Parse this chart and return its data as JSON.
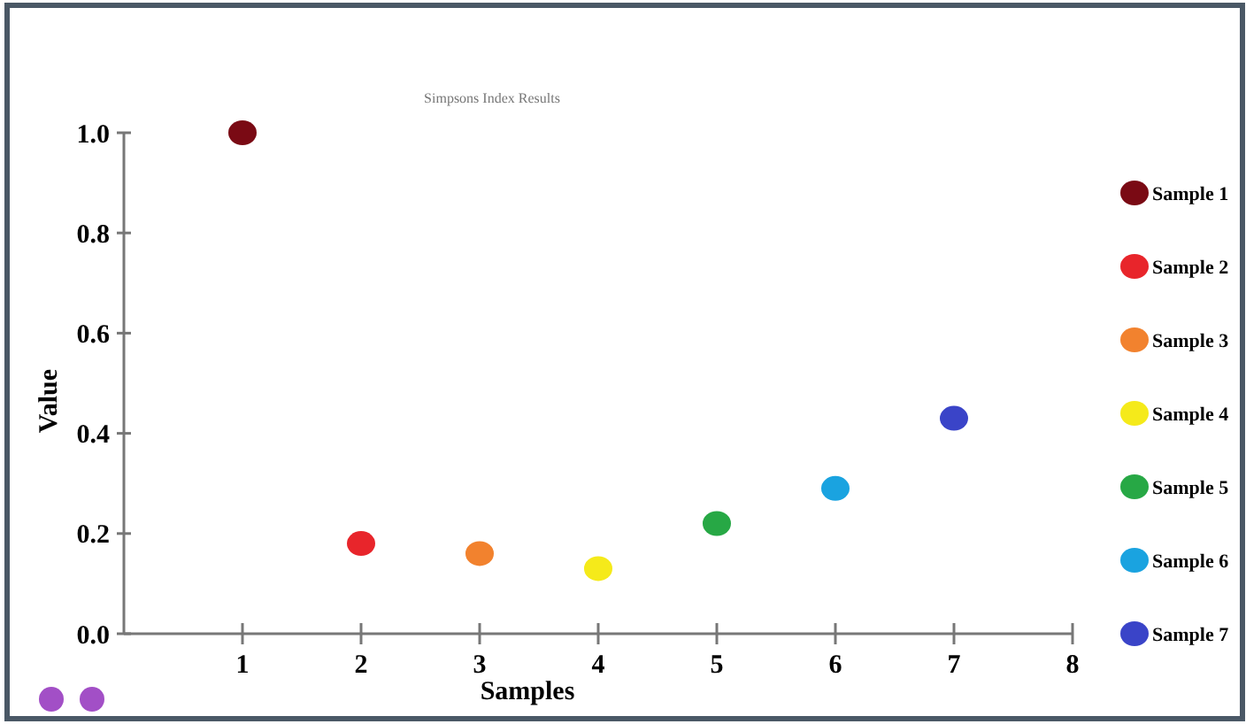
{
  "chart_data": {
    "type": "scatter",
    "title": "Simpsons Index Results",
    "xlabel": "Samples",
    "ylabel": "Value",
    "xlim": [
      0,
      8
    ],
    "xticks": [
      1,
      2,
      3,
      4,
      5,
      6,
      7,
      8
    ],
    "ylim": [
      0,
      1
    ],
    "yticks": [
      {
        "value": 0,
        "label": "0.0"
      },
      {
        "value": 0.2,
        "label": "0.2"
      },
      {
        "value": 0.4,
        "label": "0.4"
      },
      {
        "value": 0.6,
        "label": "0.6"
      },
      {
        "value": 0.8,
        "label": "0.8"
      },
      {
        "value": 1,
        "label": "1.0"
      }
    ],
    "grid": false,
    "legend": "right",
    "marker": "circle",
    "series": [
      {
        "name": "Sample 1",
        "color": "#7a0a14",
        "x": [
          1
        ],
        "values": [
          1.0
        ]
      },
      {
        "name": "Sample 2",
        "color": "#e8252b",
        "x": [
          2
        ],
        "values": [
          0.18
        ]
      },
      {
        "name": "Sample 3",
        "color": "#f2822e",
        "x": [
          3
        ],
        "values": [
          0.16
        ]
      },
      {
        "name": "Sample 4",
        "color": "#f5ea1a",
        "x": [
          4
        ],
        "values": [
          0.13
        ]
      },
      {
        "name": "Sample 5",
        "color": "#27a845",
        "x": [
          5
        ],
        "values": [
          0.22
        ]
      },
      {
        "name": "Sample 6",
        "color": "#1aa3e0",
        "x": [
          6
        ],
        "values": [
          0.29
        ]
      },
      {
        "name": "Sample 7",
        "color": "#3a44c8",
        "x": [
          7
        ],
        "values": [
          0.43
        ]
      }
    ]
  }
}
